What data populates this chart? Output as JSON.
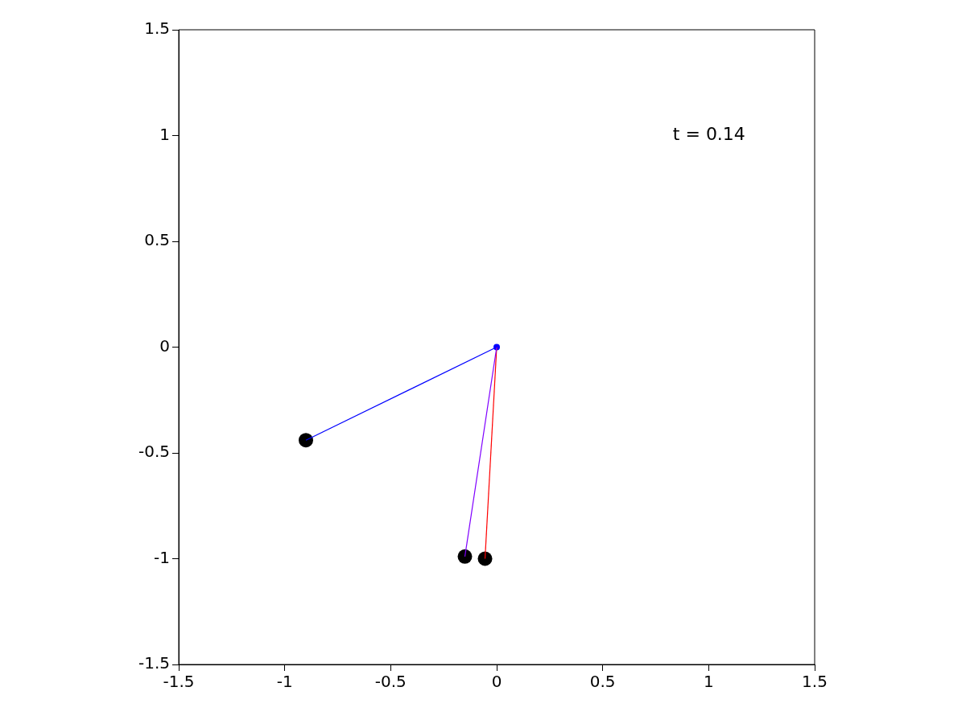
{
  "chart_data": {
    "type": "line",
    "xlim": [
      -1.5,
      1.5
    ],
    "ylim": [
      -1.5,
      1.5
    ],
    "xticks": [
      -1.5,
      -1,
      -0.5,
      0,
      0.5,
      1,
      1.5
    ],
    "yticks": [
      -1.5,
      -1,
      -0.5,
      0,
      0.5,
      1,
      1.5
    ],
    "grid": false,
    "legend": false,
    "line_style": "solid",
    "annotations": [
      "t = 0.14"
    ],
    "series": [
      {
        "type": "line",
        "marker": "none",
        "color": "#0000ff",
        "x": [
          0,
          -0.9
        ],
        "values": [
          0,
          -0.44
        ]
      },
      {
        "type": "line",
        "marker": "none",
        "color": "#8000ff",
        "x": [
          0,
          -0.15
        ],
        "values": [
          0,
          -0.99
        ]
      },
      {
        "type": "line",
        "marker": "none",
        "color": "#ff0000",
        "x": [
          0,
          -0.055
        ],
        "values": [
          0,
          -1.0
        ]
      },
      {
        "type": "scatter",
        "marker": "circle",
        "color": "#000000",
        "x": [
          -0.9,
          -0.15,
          -0.055
        ],
        "values": [
          -0.44,
          -0.99,
          -1.0
        ]
      },
      {
        "type": "scatter",
        "marker": "circle",
        "color": "#0000ff",
        "x": [
          0
        ],
        "values": [
          0
        ]
      }
    ]
  }
}
